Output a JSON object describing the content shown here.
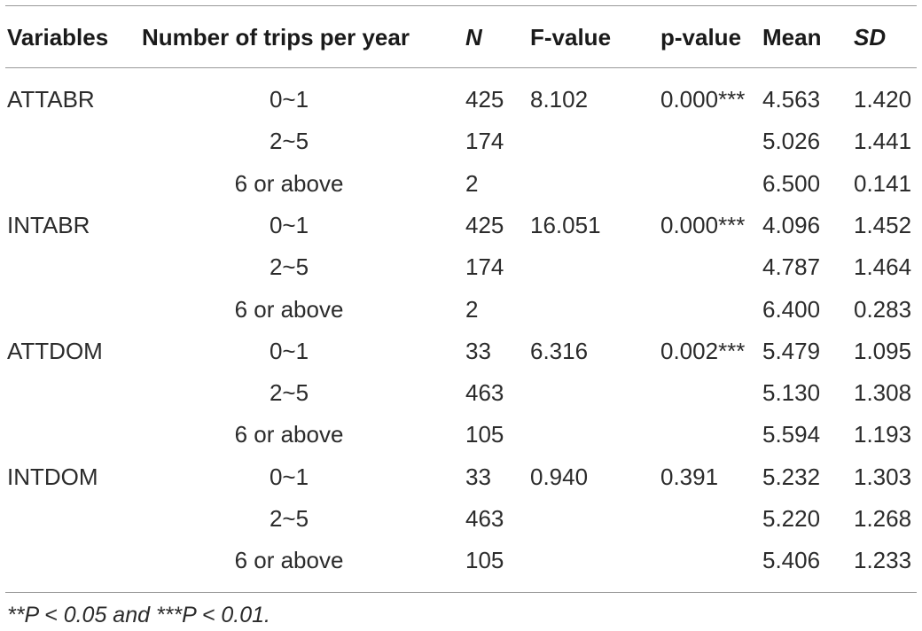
{
  "table": {
    "header": [
      "Variables",
      "Number of trips per year",
      "N",
      "F-value",
      "p-value",
      "Mean",
      "SD"
    ],
    "rows": [
      [
        "ATTABR",
        "0~1",
        "425",
        "8.102",
        "0.000***",
        "4.563",
        "1.420"
      ],
      [
        null,
        "2~5",
        "174",
        null,
        null,
        "5.026",
        "1.441"
      ],
      [
        null,
        "6 or above",
        "2",
        null,
        null,
        "6.500",
        "0.141"
      ],
      [
        "INTABR",
        "0~1",
        "425",
        "16.051",
        "0.000***",
        "4.096",
        "1.452"
      ],
      [
        null,
        "2~5",
        "174",
        null,
        null,
        "4.787",
        "1.464"
      ],
      [
        null,
        "6 or above",
        "2",
        null,
        null,
        "6.400",
        "0.283"
      ],
      [
        "ATTDOM",
        "0~1",
        "33",
        "6.316",
        "0.002***",
        "5.479",
        "1.095"
      ],
      [
        null,
        "2~5",
        "463",
        null,
        null,
        "5.130",
        "1.308"
      ],
      [
        null,
        "6 or above",
        "105",
        null,
        null,
        "5.594",
        "1.193"
      ],
      [
        "INTDOM",
        "0~1",
        "33",
        "0.940",
        "0.391",
        "5.232",
        "1.303"
      ],
      [
        null,
        "2~5",
        "463",
        null,
        null,
        "5.220",
        "1.268"
      ],
      [
        null,
        "6 or above",
        "105",
        null,
        null,
        "5.406",
        "1.233"
      ]
    ],
    "footnote": "**P < 0.05 and ***P < 0.01."
  }
}
